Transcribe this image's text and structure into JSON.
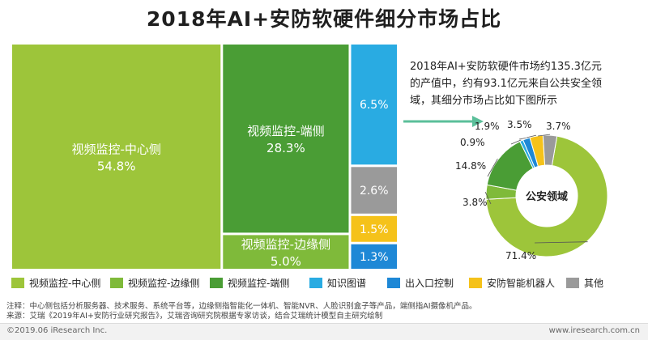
{
  "title": "2018年AI+安防软硬件细分市场占比",
  "intro": {
    "lines": [
      "2018年AI+安防软硬件市场约135.3亿元",
      "的产值中，约有93.1亿元来自公共安全领",
      "域，其细分市场占比如下图所示"
    ]
  },
  "colors": {
    "center": "#9dc53a",
    "edge": "#7fba3a",
    "endpoint": "#4a9d35",
    "knowledge": "#29abe2",
    "access": "#1e88d6",
    "robot": "#f5c21a",
    "other": "#9a9a9a",
    "arrow": "#5bbf9a"
  },
  "chart_data": [
    {
      "type": "treemap",
      "title": "2018年AI+安防软硬件细分市场占比",
      "items": [
        {
          "name": "视频监控-中心侧",
          "value": 54.8,
          "label": "54.8%",
          "color": "#9dc53a"
        },
        {
          "name": "视频监控-端侧",
          "value": 28.3,
          "label": "28.3%",
          "color": "#4a9d35"
        },
        {
          "name": "视频监控-边缘侧",
          "value": 5.0,
          "label": "5.0%",
          "color": "#7fba3a"
        },
        {
          "name": "知识图谱",
          "value": 6.5,
          "label": "6.5%",
          "color": "#29abe2"
        },
        {
          "name": "其他",
          "value": 2.6,
          "label": "2.6%",
          "color": "#9a9a9a"
        },
        {
          "name": "安防智能机器人",
          "value": 1.5,
          "label": "1.5%",
          "color": "#f5c21a"
        },
        {
          "name": "出入口控制",
          "value": 1.3,
          "label": "1.3%",
          "color": "#1e88d6"
        }
      ]
    },
    {
      "type": "pie",
      "variant": "donut",
      "center_label": "公安领域",
      "slices": [
        {
          "name": "视频监控-中心侧",
          "value": 71.4,
          "label": "71.4%",
          "color": "#9dc53a"
        },
        {
          "name": "视频监控-边缘侧",
          "value": 3.8,
          "label": "3.8%",
          "color": "#7fba3a"
        },
        {
          "name": "视频监控-端侧",
          "value": 14.8,
          "label": "14.8%",
          "color": "#4a9d35"
        },
        {
          "name": "知识图谱",
          "value": 0.9,
          "label": "0.9%",
          "color": "#29abe2"
        },
        {
          "name": "出入口控制",
          "value": 1.9,
          "label": "1.9%",
          "color": "#1e88d6"
        },
        {
          "name": "安防智能机器人",
          "value": 3.5,
          "label": "3.5%",
          "color": "#f5c21a"
        },
        {
          "name": "其他",
          "value": 3.7,
          "label": "3.7%",
          "color": "#9a9a9a"
        }
      ]
    }
  ],
  "legend": [
    {
      "label": "视频监控-中心侧",
      "color": "#9dc53a"
    },
    {
      "label": "视频监控-边缘侧",
      "color": "#7fba3a"
    },
    {
      "label": "视频监控-端侧",
      "color": "#4a9d35"
    },
    {
      "label": "知识图谱",
      "color": "#29abe2"
    },
    {
      "label": "出入口控制",
      "color": "#1e88d6"
    },
    {
      "label": "安防智能机器人",
      "color": "#f5c21a"
    },
    {
      "label": "其他",
      "color": "#9a9a9a"
    }
  ],
  "notes": {
    "note": "注释：中心侧包括分析服务器、技术服务、系统平台等，边缘侧指智能化一体机、智能NVR、人脸识别盒子等产品，端侧指AI摄像机产品。",
    "source": "来源：艾瑞《2019年AI+安防行业研究报告》，艾瑞咨询研究院根据专家访谈，结合艾瑞统计模型自主研究绘制"
  },
  "footer": {
    "copyright": "©2019.06 iResearch Inc.",
    "site": "www.iresearch.com.cn"
  }
}
